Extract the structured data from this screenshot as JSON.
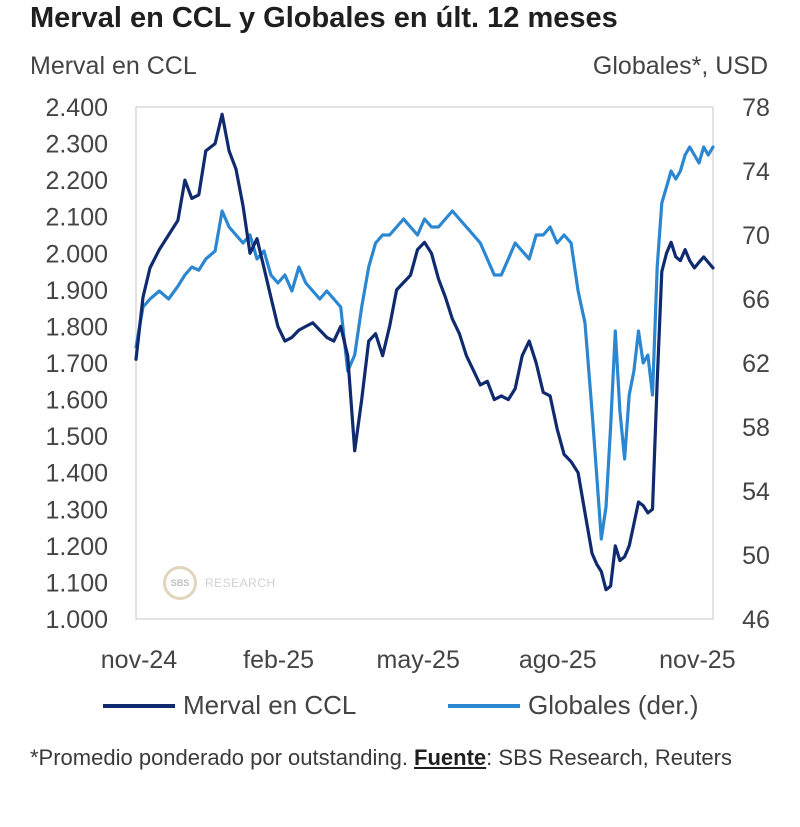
{
  "header": {
    "title": "Merval en CCL y Globales en últ. 12 meses",
    "left_axis_title": "Merval en CCL",
    "right_axis_title": "Globales*, USD"
  },
  "legend": {
    "merval_label": "Merval en CCL",
    "globales_label": "Globales (der.)"
  },
  "footnote": {
    "prefix": "*Promedio ponderado por outstanding. ",
    "source_label": "Fuente",
    "source_text": ": SBS Research, Reuters"
  },
  "watermark": {
    "logo_text": "SBS",
    "text": "RESEARCH"
  },
  "chart_data": {
    "type": "line",
    "x_type": "month_index",
    "x_range": [
      0,
      12.4
    ],
    "x_ticks": [
      {
        "x": 0,
        "label": "nov-24"
      },
      {
        "x": 3,
        "label": "feb-25"
      },
      {
        "x": 6,
        "label": "may-25"
      },
      {
        "x": 9,
        "label": "ago-25"
      },
      {
        "x": 12,
        "label": "nov-25"
      }
    ],
    "left_axis": {
      "label": "Merval en CCL",
      "ylim": [
        1000,
        2400
      ],
      "ticks": [
        1000,
        1100,
        1200,
        1300,
        1400,
        1500,
        1600,
        1700,
        1800,
        1900,
        2000,
        2100,
        2200,
        2300,
        2400
      ],
      "tick_labels": [
        "1.000",
        "1.100",
        "1.200",
        "1.300",
        "1.400",
        "1.500",
        "1.600",
        "1.700",
        "1.800",
        "1.900",
        "2.000",
        "2.100",
        "2.200",
        "2.300",
        "2.400"
      ]
    },
    "right_axis": {
      "label": "Globales*, USD",
      "ylim": [
        46,
        78
      ],
      "ticks": [
        46,
        50,
        54,
        58,
        62,
        66,
        70,
        74,
        78
      ],
      "tick_labels": [
        "46",
        "50",
        "54",
        "58",
        "62",
        "66",
        "70",
        "74",
        "78"
      ]
    },
    "series": [
      {
        "name": "Merval en CCL",
        "axis": "left",
        "color": "#0f2a6e",
        "x": [
          0,
          0.15,
          0.3,
          0.5,
          0.7,
          0.9,
          1.05,
          1.2,
          1.35,
          1.5,
          1.7,
          1.85,
          2.0,
          2.15,
          2.3,
          2.45,
          2.6,
          2.75,
          2.9,
          3.05,
          3.2,
          3.35,
          3.5,
          3.65,
          3.8,
          3.95,
          4.1,
          4.25,
          4.4,
          4.55,
          4.7,
          4.85,
          5.0,
          5.15,
          5.3,
          5.45,
          5.6,
          5.75,
          5.9,
          6.05,
          6.2,
          6.35,
          6.5,
          6.65,
          6.8,
          6.95,
          7.1,
          7.25,
          7.4,
          7.55,
          7.7,
          7.85,
          8.0,
          8.15,
          8.3,
          8.45,
          8.6,
          8.75,
          8.9,
          9.05,
          9.2,
          9.35,
          9.5,
          9.65,
          9.8,
          9.9,
          10.0,
          10.1,
          10.2,
          10.3,
          10.4,
          10.5,
          10.6,
          10.7,
          10.8,
          10.9,
          11.0,
          11.1,
          11.2,
          11.3,
          11.4,
          11.5,
          11.6,
          11.7,
          11.8,
          11.9,
          12.0,
          12.1,
          12.2,
          12.3,
          12.4
        ],
        "values": [
          1710,
          1880,
          1960,
          2010,
          2050,
          2090,
          2200,
          2150,
          2160,
          2280,
          2300,
          2380,
          2280,
          2230,
          2130,
          2000,
          2040,
          1960,
          1880,
          1800,
          1760,
          1770,
          1790,
          1800,
          1810,
          1790,
          1770,
          1760,
          1800,
          1720,
          1460,
          1600,
          1760,
          1780,
          1720,
          1800,
          1900,
          1920,
          1940,
          2010,
          2030,
          2000,
          1930,
          1880,
          1820,
          1780,
          1720,
          1680,
          1640,
          1650,
          1600,
          1610,
          1600,
          1630,
          1720,
          1760,
          1700,
          1620,
          1610,
          1520,
          1450,
          1430,
          1400,
          1290,
          1180,
          1150,
          1130,
          1080,
          1090,
          1200,
          1160,
          1170,
          1200,
          1260,
          1320,
          1310,
          1290,
          1300,
          1650,
          1950,
          2000,
          2030,
          1990,
          1980,
          2010,
          1980,
          1960,
          1975,
          1990,
          1975,
          1960
        ]
      },
      {
        "name": "Globales (der.)",
        "axis": "right",
        "color": "#2b87d1",
        "x": [
          0,
          0.15,
          0.3,
          0.5,
          0.7,
          0.9,
          1.05,
          1.2,
          1.35,
          1.5,
          1.7,
          1.85,
          2.0,
          2.15,
          2.3,
          2.45,
          2.6,
          2.75,
          2.9,
          3.05,
          3.2,
          3.35,
          3.5,
          3.65,
          3.8,
          3.95,
          4.1,
          4.25,
          4.4,
          4.55,
          4.7,
          4.85,
          5.0,
          5.15,
          5.3,
          5.45,
          5.6,
          5.75,
          5.9,
          6.05,
          6.2,
          6.35,
          6.5,
          6.65,
          6.8,
          6.95,
          7.1,
          7.25,
          7.4,
          7.55,
          7.7,
          7.85,
          8.0,
          8.15,
          8.3,
          8.45,
          8.6,
          8.75,
          8.9,
          9.05,
          9.2,
          9.35,
          9.5,
          9.65,
          9.8,
          9.9,
          10.0,
          10.1,
          10.2,
          10.3,
          10.4,
          10.5,
          10.6,
          10.7,
          10.8,
          10.9,
          11.0,
          11.1,
          11.2,
          11.3,
          11.4,
          11.5,
          11.6,
          11.7,
          11.8,
          11.9,
          12.0,
          12.1,
          12.2,
          12.3,
          12.4
        ],
        "values": [
          63.0,
          65.5,
          66.0,
          66.5,
          66.0,
          66.8,
          67.5,
          68.0,
          67.8,
          68.5,
          69.0,
          71.5,
          70.5,
          70.0,
          69.5,
          70.0,
          68.5,
          69.0,
          67.5,
          67.0,
          67.5,
          66.5,
          68.0,
          67.0,
          66.5,
          66.0,
          66.5,
          66.0,
          65.5,
          61.5,
          62.5,
          65.5,
          68.0,
          69.5,
          70.0,
          70.0,
          70.5,
          71.0,
          70.5,
          70.0,
          71.0,
          70.5,
          70.5,
          71.0,
          71.5,
          71.0,
          70.5,
          70.0,
          69.5,
          68.5,
          67.5,
          67.5,
          68.5,
          69.5,
          69.0,
          68.5,
          70.0,
          70.0,
          70.5,
          69.5,
          70.0,
          69.5,
          66.5,
          64.5,
          59.0,
          55.0,
          51.0,
          53.0,
          58.0,
          64.0,
          59.0,
          56.0,
          60.0,
          61.5,
          64.0,
          62.0,
          62.5,
          60.0,
          68.0,
          72.0,
          73.0,
          74.0,
          73.5,
          74.0,
          75.0,
          75.5,
          75.0,
          74.5,
          75.5,
          75.0,
          75.5
        ]
      }
    ],
    "grid": false,
    "legend_position": "bottom"
  }
}
